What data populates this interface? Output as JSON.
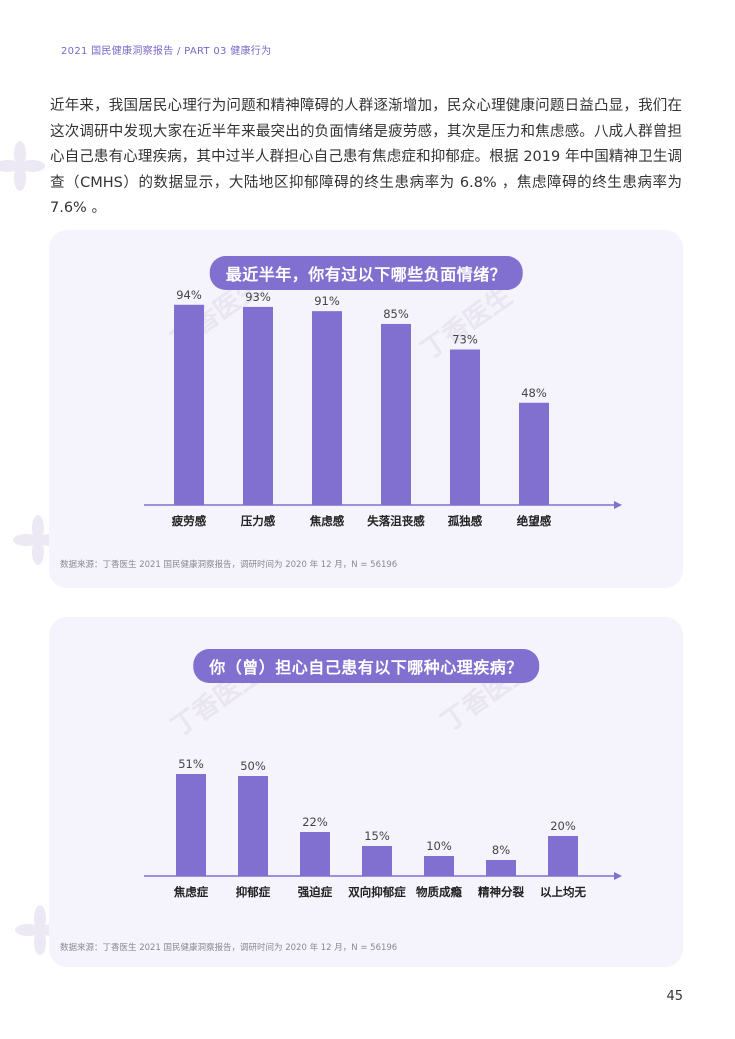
{
  "header": {
    "text": "2021 国民健康洞察报告 / PART 03 健康行为"
  },
  "intro": {
    "text": "近年来，我国居民心理行为问题和精神障碍的人群逐渐增加，民众心理健康问题日益凸显，我们在这次调研中发现大家在近半年来最突出的负面情绪是疲劳感，其次是压力和焦虑感。八成人群曾担心自己患有心理疾病，其中过半人群担心自己患有焦虑症和抑郁症。根据 2019 年中国精神卫生调查（CMHS）的数据显示，大陆地区抑郁障碍的终生患病率为 6.8% ，焦虑障碍的终生患病率为 7.6% 。"
  },
  "watermark": {
    "text": "丁香医生"
  },
  "colors": {
    "accent": "#8170cf",
    "bar": "#8170cf",
    "card_bg": "#f5f3fb"
  },
  "chart_data": [
    {
      "type": "bar",
      "title": "最近半年，你有过以下哪些负面情绪？",
      "categories": [
        "疲劳感",
        "压力感",
        "焦虑感",
        "失落沮丧感",
        "孤独感",
        "绝望感"
      ],
      "values": [
        94,
        93,
        91,
        85,
        73,
        48
      ],
      "value_labels": [
        "94%",
        "93%",
        "91%",
        "85%",
        "73%",
        "48%"
      ],
      "unit": "%",
      "ylim": [
        0,
        100
      ],
      "grid": false,
      "source": "数据来源：丁香医生 2021 国民健康洞察报告，调研时间为 2020 年 12 月，N = 56196"
    },
    {
      "type": "bar",
      "title": "你（曾）担心自己患有以下哪种心理疾病？",
      "categories": [
        "焦虑症",
        "抑郁症",
        "强迫症",
        "双向抑郁症",
        "物质成瘾",
        "精神分裂",
        "以上均无"
      ],
      "values": [
        51,
        50,
        22,
        15,
        10,
        8,
        20
      ],
      "value_labels": [
        "51%",
        "50%",
        "22%",
        "15%",
        "10%",
        "8%",
        "20%"
      ],
      "unit": "%",
      "ylim": [
        0,
        100
      ],
      "grid": false,
      "source": "数据来源：丁香医生 2021 国民健康洞察报告，调研时间为 2020 年 12 月，N = 56196"
    }
  ],
  "page": {
    "number": "45"
  }
}
